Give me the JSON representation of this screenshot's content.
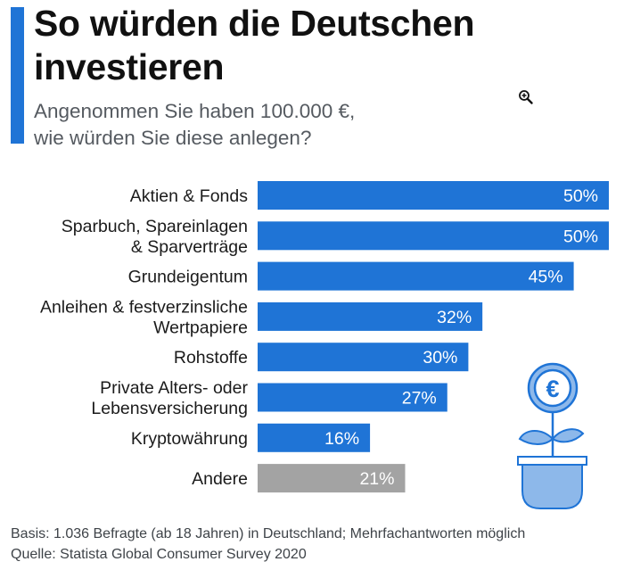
{
  "header": {
    "title_line1": "So würden die Deutschen",
    "title_line2": "investieren",
    "subtitle_line1": "Angenommen Sie haben 100.000 €,",
    "subtitle_line2": "wie würden Sie diese anlegen?"
  },
  "chart_data": {
    "type": "bar",
    "orientation": "horizontal",
    "title": "So würden die Deutschen investieren",
    "subtitle": "Angenommen Sie haben 100.000 €, wie würden Sie diese anlegen?",
    "categories": [
      [
        "Aktien & Fonds"
      ],
      [
        "Sparbuch, Spareinlagen",
        "& Sparverträge"
      ],
      [
        "Grundeigentum"
      ],
      [
        "Anleihen & festverzinsliche",
        "Wertpapiere"
      ],
      [
        "Rohstoffe"
      ],
      [
        "Private Alters- oder",
        "Lebensversicherung"
      ],
      [
        "Kryptowährung"
      ],
      [
        "Andere"
      ]
    ],
    "values": [
      50,
      50,
      45,
      32,
      30,
      27,
      16,
      21
    ],
    "value_labels": [
      "50%",
      "50%",
      "45%",
      "32%",
      "30%",
      "27%",
      "16%",
      "21%"
    ],
    "unit": "%",
    "xlim": [
      0,
      50
    ],
    "grid": false,
    "legend": "none",
    "colors": [
      "#1f74d6",
      "#1f74d6",
      "#1f74d6",
      "#1f74d6",
      "#1f74d6",
      "#1f74d6",
      "#1f74d6",
      "#a3a3a3"
    ]
  },
  "illustration": {
    "icon": "euro-flower-pot-icon",
    "symbol": "€"
  },
  "footer": {
    "basis": "Basis: 1.036 Befragte (ab 18 Jahren) in Deutschland; Mehrfachantworten möglich",
    "source": "Quelle: Statista Global Consumer Survey 2020"
  },
  "colors": {
    "accent": "#1f74d6",
    "bar": "#1f74d6",
    "bar_other": "#a3a3a3",
    "illustration_fill": "#8db8ea",
    "illustration_stroke": "#1f74d6"
  }
}
